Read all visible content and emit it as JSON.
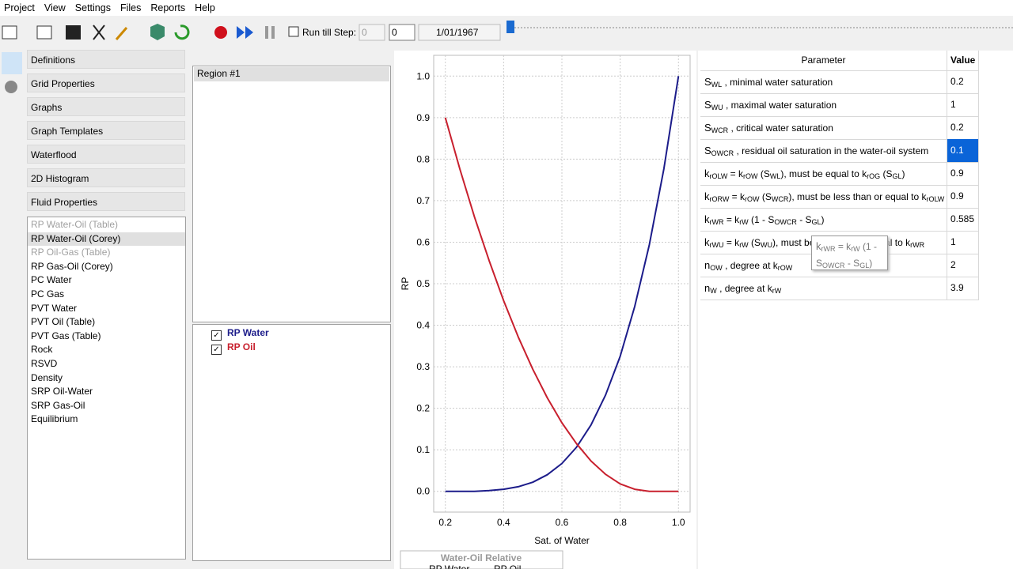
{
  "menu": [
    "Project",
    "View",
    "Settings",
    "Files",
    "Reports",
    "Help"
  ],
  "toolbar": {
    "run_till_step": "Run till Step:",
    "step_from": "0",
    "step_to": "0",
    "date": "1/01/1967"
  },
  "nav": [
    "Definitions",
    "Grid Properties",
    "Graphs",
    "Graph Templates",
    "Waterflood",
    "2D Histogram",
    "Fluid Properties"
  ],
  "fluid_list": {
    "selected": 1,
    "items": [
      {
        "label": "RP Water-Oil (Table)",
        "enabled": false
      },
      {
        "label": "RP Water-Oil (Corey)",
        "enabled": true
      },
      {
        "label": "RP Oil-Gas (Table)",
        "enabled": false
      },
      {
        "label": "RP Gas-Oil (Corey)",
        "enabled": true
      },
      {
        "label": "PC Water",
        "enabled": true
      },
      {
        "label": "PC Gas",
        "enabled": true
      },
      {
        "label": "PVT Water",
        "enabled": true
      },
      {
        "label": "PVT Oil (Table)",
        "enabled": true
      },
      {
        "label": "PVT Gas (Table)",
        "enabled": true
      },
      {
        "label": "Rock",
        "enabled": true
      },
      {
        "label": "RSVD",
        "enabled": true
      },
      {
        "label": "Density",
        "enabled": true
      },
      {
        "label": "SRP Oil-Water",
        "enabled": true
      },
      {
        "label": "SRP Gas-Oil",
        "enabled": true
      },
      {
        "label": "Equilibrium",
        "enabled": true
      }
    ]
  },
  "region_list": [
    "Region #1"
  ],
  "chart_data": {
    "type": "line",
    "ylabel": "RP",
    "xlabel": "Sat. of Water",
    "legend_title": "Water-Oil Relative",
    "grid": true,
    "x": [
      0.2,
      0.25,
      0.3,
      0.35,
      0.4,
      0.45,
      0.5,
      0.55,
      0.6,
      0.65,
      0.7,
      0.75,
      0.8,
      0.85,
      0.9,
      0.95,
      1
    ],
    "series": [
      {
        "name": "RP Water",
        "color": "#1c1c8a",
        "values": [
          0,
          0,
          0,
          0.002,
          0.005,
          0.011,
          0.022,
          0.04,
          0.067,
          0.106,
          0.16,
          0.232,
          0.325,
          0.445,
          0.594,
          0.777,
          1
        ]
      },
      {
        "name": "RP Oil",
        "color": "#c8202e",
        "values": [
          0.9,
          0.776,
          0.661,
          0.556,
          0.459,
          0.372,
          0.294,
          0.225,
          0.165,
          0.115,
          0.073,
          0.041,
          0.018,
          0.005,
          0,
          0,
          0
        ]
      }
    ],
    "xlim": [
      0.16,
      1.04
    ],
    "xticks": [
      0.2,
      0.4,
      0.6,
      0.8,
      {
        "value": 1,
        "label": "1.0"
      }
    ],
    "ylim": [
      -0.05,
      1.05
    ],
    "yticks": [
      {
        "value": 0,
        "label": "0.0"
      },
      0.1,
      0.2,
      0.3,
      0.4,
      0.5,
      0.6,
      0.7,
      0.8,
      0.9,
      {
        "value": 1,
        "label": "1.0"
      }
    ]
  },
  "table": {
    "headers": [
      "Parameter",
      "Value"
    ],
    "selected_row": 3,
    "rows": [
      {
        "label": [
          "S",
          "WL",
          " , minimal water saturation"
        ],
        "value": 0.2
      },
      {
        "label": [
          "S",
          "WU",
          " , maximal water saturation"
        ],
        "value": 1
      },
      {
        "label": [
          "S",
          "WCR",
          " , critical water saturation"
        ],
        "value": 0.2
      },
      {
        "label": [
          "S",
          "OWCR",
          " , residual oil saturation in the water-oil system"
        ],
        "value": 0.1
      },
      {
        "label": [
          "k",
          "rOLW",
          " = k",
          "rOW",
          " (S",
          "WL",
          "), must be equal to k",
          "rOG",
          " (S",
          "GL",
          ")"
        ],
        "value": 0.9
      },
      {
        "label": [
          "k",
          "rORW",
          " = k",
          "rOW",
          " (S",
          "WCR",
          "), must be less than or equal to k",
          "rOLW"
        ],
        "value": 0.9
      },
      {
        "label": [
          "k",
          "rWR",
          " = k",
          "rW",
          " (1 - S",
          "OWCR",
          " - S",
          "GL",
          ")"
        ],
        "value": 0.585
      },
      {
        "label": [
          "k",
          "rWU",
          " = k",
          "rW",
          " (S",
          "WU",
          "), must be less than or equal to k",
          "rWR"
        ],
        "value": 1
      },
      {
        "label": [
          "n",
          "OW",
          " , degree at k",
          "rOW"
        ],
        "value": 2
      },
      {
        "label": [
          "n",
          "W",
          " , degree at k",
          "rW"
        ],
        "value": 3.9
      }
    ]
  },
  "tooltip": [
    "k",
    "rWR",
    " = k",
    "rW",
    " (1 - S",
    "OWCR",
    " - S",
    "GL",
    ")"
  ]
}
